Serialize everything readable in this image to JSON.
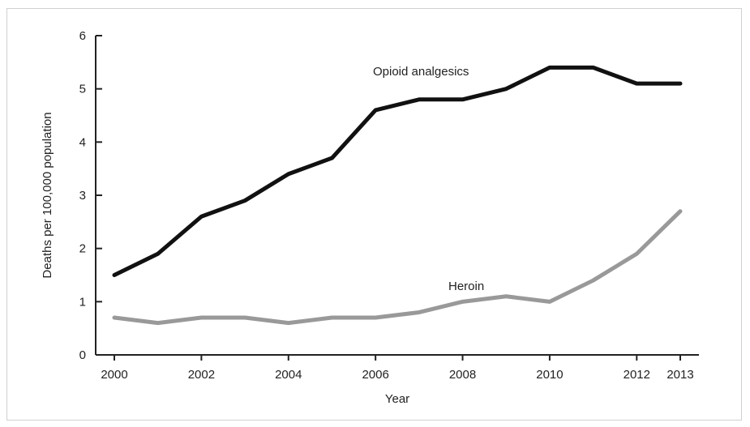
{
  "chart_data": {
    "type": "line",
    "title": "",
    "xlabel": "Year",
    "ylabel": "Deaths per 100,000 population",
    "x": [
      2000,
      2001,
      2002,
      2003,
      2004,
      2005,
      2006,
      2007,
      2008,
      2009,
      2010,
      2011,
      2012,
      2013
    ],
    "x_tick_labels": [
      "2000",
      "2002",
      "2004",
      "2006",
      "2008",
      "2010",
      "2012",
      "2013"
    ],
    "x_tick_values": [
      2000,
      2002,
      2004,
      2006,
      2008,
      2010,
      2012,
      2013
    ],
    "y_ticks": [
      0,
      1,
      2,
      3,
      4,
      5,
      6
    ],
    "xlim": [
      2000,
      2013
    ],
    "ylim": [
      0,
      6
    ],
    "grid": false,
    "legend": "none",
    "series": [
      {
        "name": "Opioid analgesics",
        "color": "#111111",
        "values": [
          1.5,
          1.9,
          2.6,
          2.9,
          3.4,
          3.7,
          4.6,
          4.8,
          4.8,
          5.0,
          5.4,
          5.4,
          5.1,
          5.1
        ]
      },
      {
        "name": "Heroin",
        "color": "#999999",
        "values": [
          0.7,
          0.6,
          0.7,
          0.7,
          0.6,
          0.7,
          0.7,
          0.8,
          1.0,
          1.1,
          1.0,
          1.4,
          1.9,
          2.7
        ]
      }
    ]
  }
}
